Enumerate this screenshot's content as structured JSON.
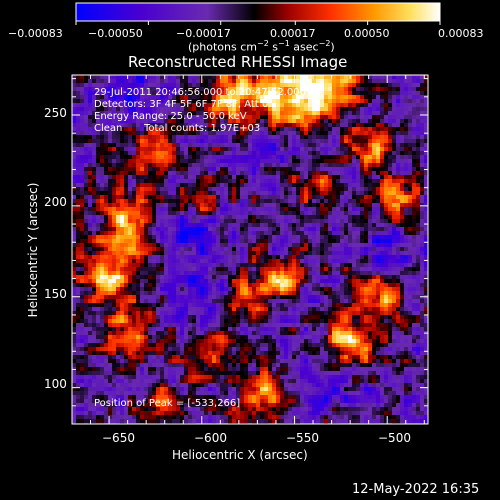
{
  "chart_data": {
    "type": "heatmap",
    "title": "Reconstructed RHESSI Image",
    "xlabel": "Heliocentric X (arcsec)",
    "ylabel": "Heliocentric Y (arcsec)",
    "xlim": [
      -670,
      -478
    ],
    "ylim": [
      80,
      272
    ],
    "x_ticks": [
      -650,
      -600,
      -550,
      -500
    ],
    "x_tick_labels": [
      "−650",
      "−600",
      "−550",
      "−500"
    ],
    "y_ticks": [
      100,
      150,
      200,
      250
    ],
    "y_tick_labels": [
      "100",
      "150",
      "200",
      "250"
    ],
    "colorbar": {
      "min": -0.00083,
      "max": 0.00083,
      "ticks": [
        -0.00083,
        -0.0005,
        -0.00017,
        0.00017,
        0.0005,
        0.00083
      ],
      "tick_labels": [
        "−0.00083",
        "−0.00050",
        "−0.00017",
        "0.00017",
        "0.00050",
        "0.00083"
      ],
      "units_prefix": "(photons cm",
      "units_exp1": "−2",
      "units_mid1": " s",
      "units_exp2": "−1",
      "units_mid2": " asec",
      "units_exp3": "−2",
      "units_suffix": ")",
      "colors": [
        "#0000ff",
        "#5500cc",
        "#7a2fbf",
        "#000000",
        "#aa0000",
        "#ff3300",
        "#ff9900",
        "#ffee55",
        "#ffffff"
      ]
    },
    "annotations": {
      "time_range": "29-Jul-2011 20:46:56.000 to 20:47:52.000",
      "detectors": "Detectors: 3F 4F 5F 6F 7F 8F, Att 0",
      "energy_range": "Energy Range: 25.0 - 50.0 keV",
      "method": "Clean",
      "total_counts": "Total counts: 1.97E+03",
      "peak_position": "Position of Peak = [-533,266]"
    },
    "peak": [
      -533,
      266
    ],
    "grid": false
  },
  "footer": {
    "timestamp": "12-May-2022 16:35"
  }
}
